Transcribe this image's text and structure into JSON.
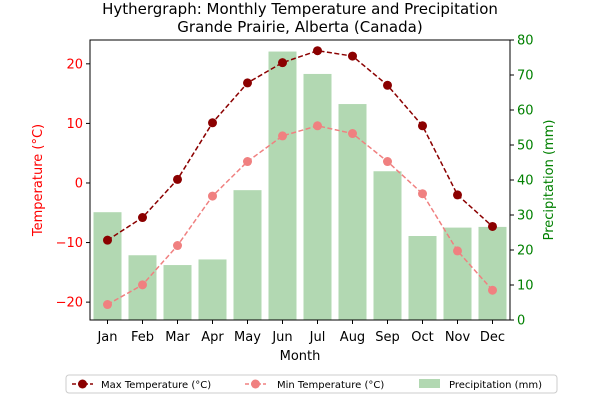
{
  "chart_data": {
    "type": "bar+line",
    "title_line1": "Hythergraph: Monthly Temperature and Precipitation",
    "title_line2": "Grande Prairie, Alberta (Canada)",
    "xlabel": "Month",
    "ylabel_left": "Temperature (°C)",
    "ylabel_right": "Precipitation (mm)",
    "categories": [
      "Jan",
      "Feb",
      "Mar",
      "Apr",
      "May",
      "Jun",
      "Jul",
      "Aug",
      "Sep",
      "Oct",
      "Nov",
      "Dec"
    ],
    "y_left_lim": [
      -23,
      24
    ],
    "y_left_ticks": [
      -20,
      -10,
      0,
      10,
      20
    ],
    "y_right_lim": [
      0,
      80
    ],
    "y_right_ticks": [
      0,
      10,
      20,
      30,
      40,
      50,
      60,
      70,
      80
    ],
    "grid": false,
    "legend_placement": "bottom-center",
    "series": [
      {
        "name": "Max Temperature (°C)",
        "kind": "line",
        "axis": "left",
        "color": "#8b0000",
        "values": [
          -9.6,
          -5.8,
          0.6,
          10.1,
          16.8,
          20.2,
          22.2,
          21.3,
          16.4,
          9.6,
          -2.0,
          -7.3
        ]
      },
      {
        "name": "Min Temperature (°C)",
        "kind": "line",
        "axis": "left",
        "color": "#f08080",
        "values": [
          -20.4,
          -17.1,
          -10.5,
          -2.2,
          3.6,
          7.9,
          9.6,
          8.3,
          3.6,
          -1.8,
          -11.4,
          -18.0
        ]
      },
      {
        "name": "Precipitation (mm)",
        "kind": "bar",
        "axis": "right",
        "color": "#b2d8b2",
        "values": [
          30.8,
          18.5,
          15.7,
          17.3,
          37.1,
          76.7,
          70.3,
          61.7,
          42.5,
          24.0,
          26.4,
          26.6
        ]
      }
    ]
  }
}
